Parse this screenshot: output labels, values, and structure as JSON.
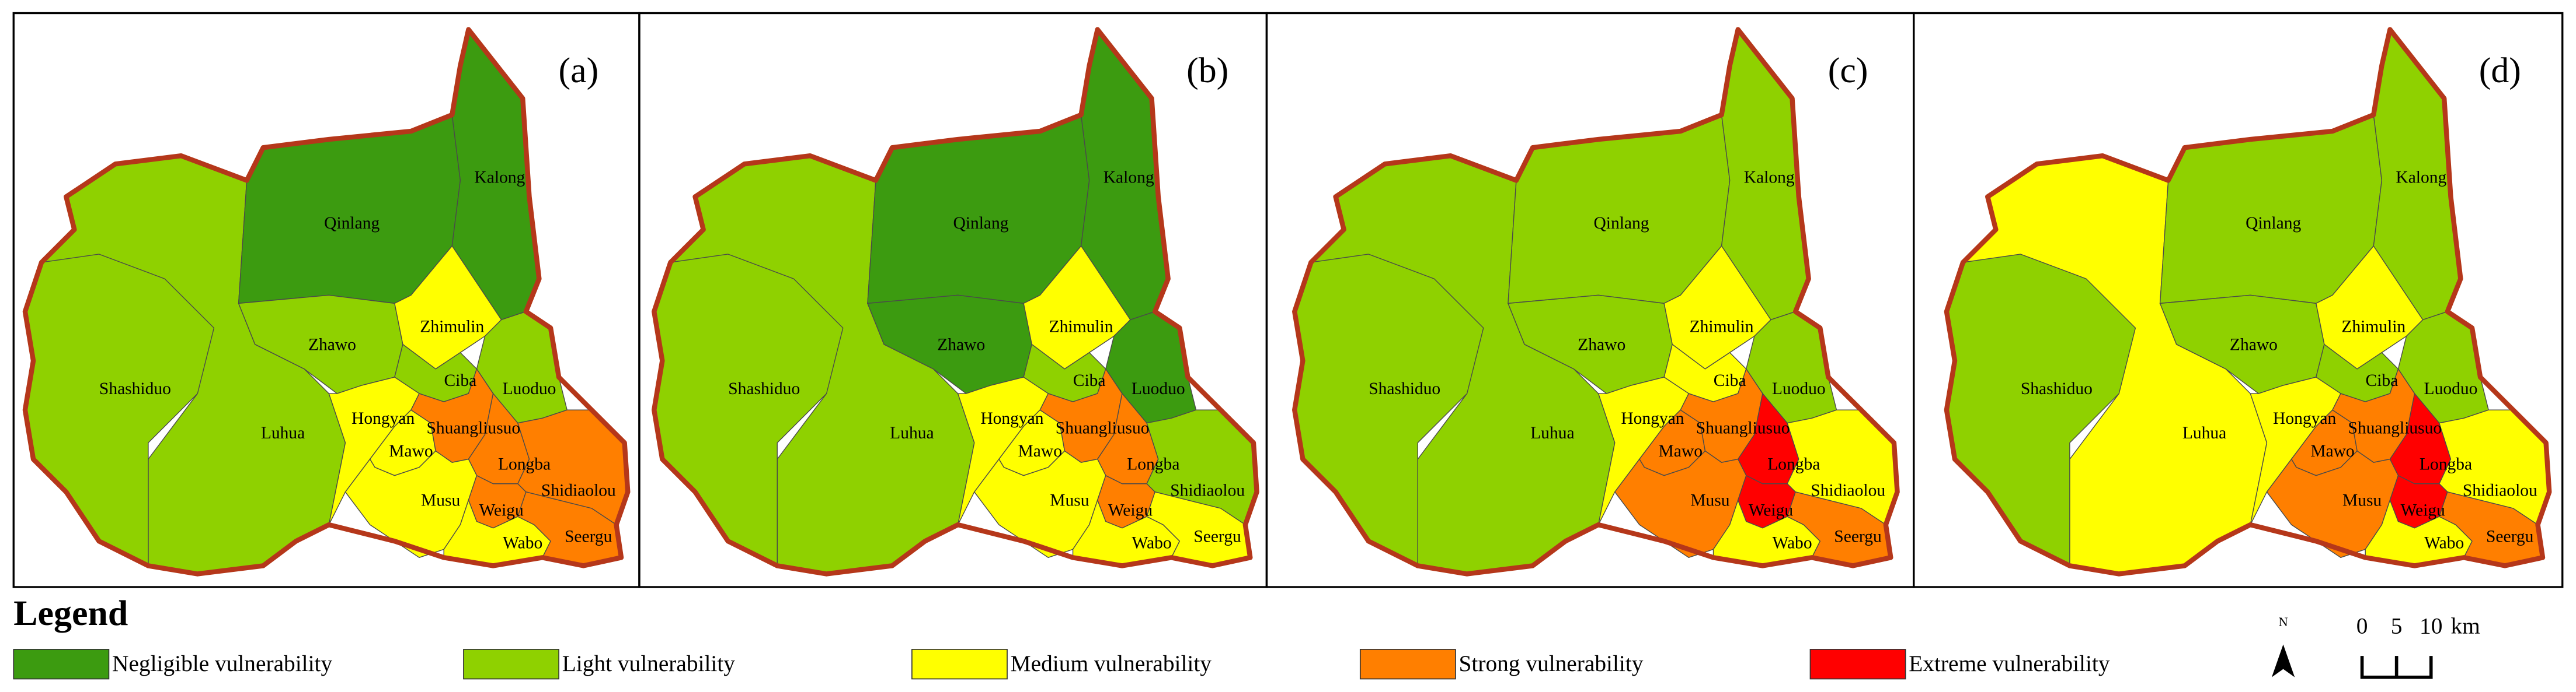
{
  "panels": [
    {
      "label": "(a)",
      "regions": [
        {
          "name": "Luhua",
          "color": "#8fd100"
        },
        {
          "name": "Shashiduo",
          "color": "#8fd100"
        },
        {
          "name": "Qinlang",
          "color": "#3c9b10"
        },
        {
          "name": "Kalong",
          "color": "#3c9b10"
        },
        {
          "name": "Zhawo",
          "color": "#8fd100"
        },
        {
          "name": "Zhimulin",
          "color": "#ffff00"
        },
        {
          "name": "Luoduo",
          "color": "#8fd100"
        },
        {
          "name": "Ciba",
          "color": "#8fd100"
        },
        {
          "name": "Hongyan",
          "color": "#ffff00"
        },
        {
          "name": "Mawo",
          "color": "#ffff00"
        },
        {
          "name": "Shuangliusuo",
          "color": "#ff7f00"
        },
        {
          "name": "Longba",
          "color": "#ff7f00"
        },
        {
          "name": "Shidiaolou",
          "color": "#ff7f00"
        },
        {
          "name": "Musu",
          "color": "#ffff00"
        },
        {
          "name": "Weigu",
          "color": "#ff7f00"
        },
        {
          "name": "Wabo",
          "color": "#ffff00"
        },
        {
          "name": "Seergu",
          "color": "#ff7f00"
        }
      ]
    },
    {
      "label": "(b)",
      "regions": [
        {
          "name": "Luhua",
          "color": "#8fd100"
        },
        {
          "name": "Shashiduo",
          "color": "#8fd100"
        },
        {
          "name": "Qinlang",
          "color": "#3c9b10"
        },
        {
          "name": "Kalong",
          "color": "#3c9b10"
        },
        {
          "name": "Zhawo",
          "color": "#3c9b10"
        },
        {
          "name": "Zhimulin",
          "color": "#ffff00"
        },
        {
          "name": "Luoduo",
          "color": "#3c9b10"
        },
        {
          "name": "Ciba",
          "color": "#8fd100"
        },
        {
          "name": "Hongyan",
          "color": "#ffff00"
        },
        {
          "name": "Mawo",
          "color": "#ffff00"
        },
        {
          "name": "Shuangliusuo",
          "color": "#ff7f00"
        },
        {
          "name": "Longba",
          "color": "#ff7f00"
        },
        {
          "name": "Shidiaolou",
          "color": "#8fd100"
        },
        {
          "name": "Musu",
          "color": "#ffff00"
        },
        {
          "name": "Weigu",
          "color": "#ff7f00"
        },
        {
          "name": "Wabo",
          "color": "#ffff00"
        },
        {
          "name": "Seergu",
          "color": "#ffff00"
        }
      ]
    },
    {
      "label": "(c)",
      "regions": [
        {
          "name": "Luhua",
          "color": "#8fd100"
        },
        {
          "name": "Shashiduo",
          "color": "#8fd100"
        },
        {
          "name": "Qinlang",
          "color": "#8fd100"
        },
        {
          "name": "Kalong",
          "color": "#8fd100"
        },
        {
          "name": "Zhawo",
          "color": "#8fd100"
        },
        {
          "name": "Zhimulin",
          "color": "#ffff00"
        },
        {
          "name": "Luoduo",
          "color": "#8fd100"
        },
        {
          "name": "Ciba",
          "color": "#ffff00"
        },
        {
          "name": "Hongyan",
          "color": "#ffff00"
        },
        {
          "name": "Mawo",
          "color": "#ff7f00"
        },
        {
          "name": "Shuangliusuo",
          "color": "#ff7f00"
        },
        {
          "name": "Longba",
          "color": "#ff0000"
        },
        {
          "name": "Shidiaolou",
          "color": "#ffff00"
        },
        {
          "name": "Musu",
          "color": "#ff7f00"
        },
        {
          "name": "Weigu",
          "color": "#ff0000"
        },
        {
          "name": "Wabo",
          "color": "#ffff00"
        },
        {
          "name": "Seergu",
          "color": "#ff7f00"
        }
      ]
    },
    {
      "label": "(d)",
      "regions": [
        {
          "name": "Luhua",
          "color": "#ffff00"
        },
        {
          "name": "Shashiduo",
          "color": "#8fd100"
        },
        {
          "name": "Qinlang",
          "color": "#8fd100"
        },
        {
          "name": "Kalong",
          "color": "#8fd100"
        },
        {
          "name": "Zhawo",
          "color": "#8fd100"
        },
        {
          "name": "Zhimulin",
          "color": "#ffff00"
        },
        {
          "name": "Luoduo",
          "color": "#8fd100"
        },
        {
          "name": "Ciba",
          "color": "#8fd100"
        },
        {
          "name": "Hongyan",
          "color": "#ffff00"
        },
        {
          "name": "Mawo",
          "color": "#ff7f00"
        },
        {
          "name": "Shuangliusuo",
          "color": "#ff7f00"
        },
        {
          "name": "Longba",
          "color": "#ff0000"
        },
        {
          "name": "Shidiaolou",
          "color": "#ffff00"
        },
        {
          "name": "Musu",
          "color": "#ff7f00"
        },
        {
          "name": "Weigu",
          "color": "#ff0000"
        },
        {
          "name": "Wabo",
          "color": "#ffff00"
        },
        {
          "name": "Seergu",
          "color": "#ff7f00"
        }
      ]
    }
  ],
  "legend": {
    "title": "Legend",
    "items": [
      {
        "label": "Negligible vulnerability",
        "color": "#3c9b10"
      },
      {
        "label": "Light vulnerability",
        "color": "#8fd100"
      },
      {
        "label": "Medium vulnerability",
        "color": "#ffff00"
      },
      {
        "label": "Strong vulnerability",
        "color": "#ff7f00"
      },
      {
        "label": "Extreme vulnerability",
        "color": "#ff0000"
      }
    ]
  },
  "north": "N",
  "scale_bar": {
    "ticks": [
      0,
      5,
      10
    ],
    "unit": "km"
  }
}
